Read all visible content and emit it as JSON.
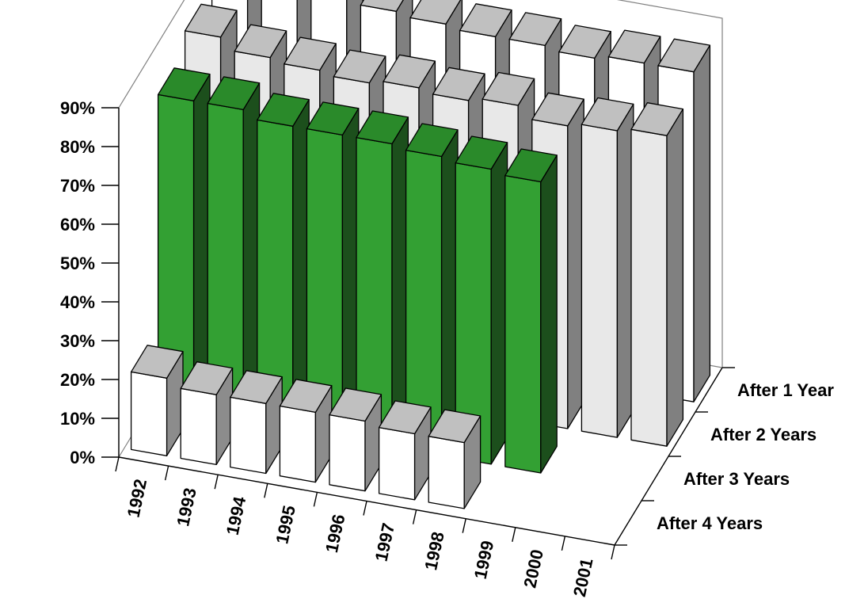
{
  "chart_data": {
    "type": "bar",
    "subtype": "3d-column",
    "title": "",
    "xlabel": "",
    "ylabel": "",
    "ylim": [
      0,
      90
    ],
    "y_ticks": [
      "0%",
      "10%",
      "20%",
      "30%",
      "40%",
      "50%",
      "60%",
      "70%",
      "80%",
      "90%"
    ],
    "categories": [
      "1992",
      "1993",
      "1994",
      "1995",
      "1996",
      "1997",
      "1998",
      "1999",
      "2000",
      "2001"
    ],
    "series": [
      {
        "name": "After 1 Year",
        "values": [
          90,
          90,
          88,
          87,
          86,
          85,
          85,
          84,
          85,
          85
        ],
        "color": "#ffffff",
        "side_color": "#808080",
        "top_color": "#c0c0c0"
      },
      {
        "name": "After 2 Years",
        "values": [
          85,
          82,
          81,
          80,
          81,
          80,
          81,
          78,
          79,
          80
        ],
        "color": "#e8e8e8",
        "side_color": "#808080",
        "top_color": "#c0c0c0"
      },
      {
        "name": "After 3 Years",
        "values": [
          80,
          80,
          78,
          78,
          78,
          77,
          76,
          75,
          null,
          null
        ],
        "color": "#33a033",
        "side_color": "#1c4f1c",
        "top_color": "#2a8a2a"
      },
      {
        "name": "After 4 Years",
        "values": [
          20,
          18,
          18,
          18,
          18,
          17,
          17,
          null,
          null,
          null
        ],
        "color": "#ffffff",
        "side_color": "#8c8c8c",
        "top_color": "#c0c0c0"
      }
    ],
    "grid": false,
    "legend": "none"
  }
}
